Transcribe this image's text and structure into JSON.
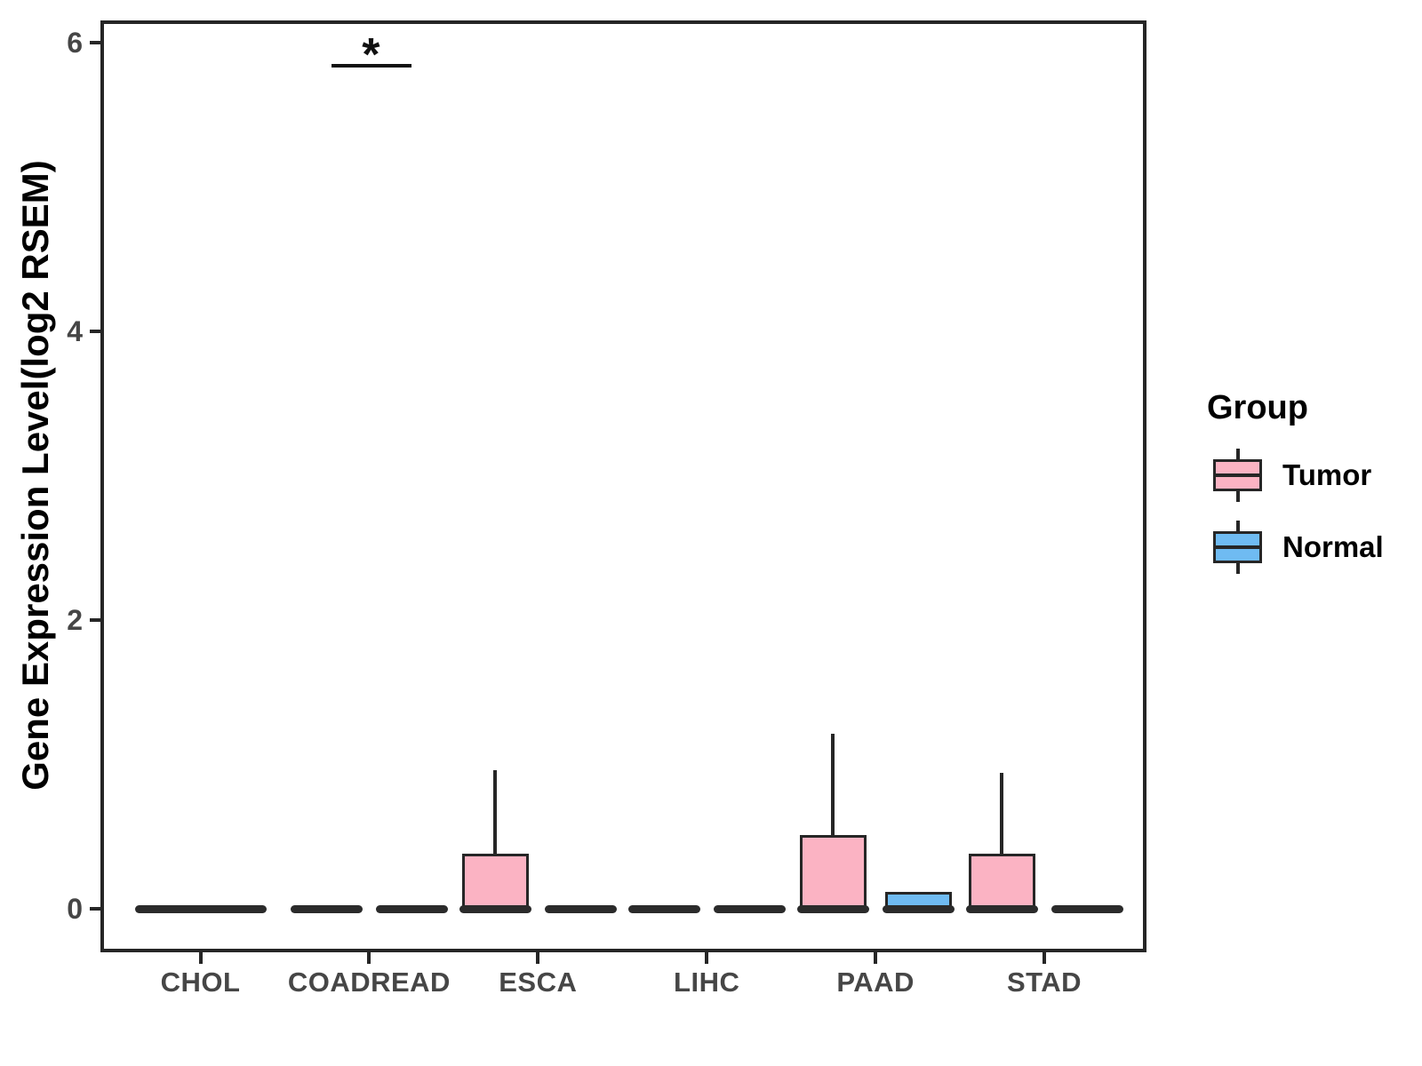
{
  "figure": {
    "background": "#FFFFFF"
  },
  "chart_data": {
    "type": "boxplot",
    "title": "",
    "xlabel": "",
    "ylabel": "Gene Expression Level(log2 RSEM)",
    "ylim": [
      -0.3,
      6.15
    ],
    "yticks": [
      0,
      2,
      4,
      6
    ],
    "grid": false,
    "categories": [
      "CHOL",
      "COADREAD",
      "ESCA",
      "LIHC",
      "PAAD",
      "STAD"
    ],
    "groups": [
      {
        "name": "Tumor",
        "color": "#FBB3C3"
      },
      {
        "name": "Normal",
        "color": "#6FBBF2"
      }
    ],
    "series": [
      {
        "name": "Tumor",
        "boxes": [
          {
            "category": "CHOL",
            "min": 0,
            "q1": 0,
            "median": 0,
            "q3": 0,
            "max": 0
          },
          {
            "category": "COADREAD",
            "min": 0,
            "q1": 0,
            "median": 0,
            "q3": 0,
            "max": 0
          },
          {
            "category": "ESCA",
            "min": 0,
            "q1": 0,
            "median": 0,
            "q3": 0.38,
            "max": 0.96
          },
          {
            "category": "LIHC",
            "min": 0,
            "q1": 0,
            "median": 0,
            "q3": 0,
            "max": 0
          },
          {
            "category": "PAAD",
            "min": 0,
            "q1": 0,
            "median": 0,
            "q3": 0.51,
            "max": 1.21
          },
          {
            "category": "STAD",
            "min": 0,
            "q1": 0,
            "median": 0,
            "q3": 0.38,
            "max": 0.94
          }
        ]
      },
      {
        "name": "Normal",
        "boxes": [
          {
            "category": "CHOL",
            "min": 0,
            "q1": 0,
            "median": 0,
            "q3": 0,
            "max": 0
          },
          {
            "category": "COADREAD",
            "min": 0,
            "q1": 0,
            "median": 0,
            "q3": 0,
            "max": 0
          },
          {
            "category": "ESCA",
            "min": 0,
            "q1": 0,
            "median": 0,
            "q3": 0,
            "max": 0
          },
          {
            "category": "LIHC",
            "min": 0,
            "q1": 0,
            "median": 0,
            "q3": 0,
            "max": 0
          },
          {
            "category": "PAAD",
            "min": 0,
            "q1": 0,
            "median": 0,
            "q3": 0.12,
            "max": 0.12
          },
          {
            "category": "STAD",
            "min": 0,
            "q1": 0,
            "median": 0,
            "q3": 0,
            "max": 0
          }
        ]
      }
    ],
    "merged_flat_categories": [
      "CHOL"
    ],
    "annotations": [
      {
        "type": "significance",
        "category": "COADREAD",
        "label": "*",
        "y": 5.84
      }
    ],
    "legend": {
      "title": "Group",
      "position": "right"
    },
    "colors": {
      "line": "#262626",
      "flat_bar": "#2B2B2B",
      "tick_label": "#464646",
      "axis_title": "#000000"
    }
  }
}
